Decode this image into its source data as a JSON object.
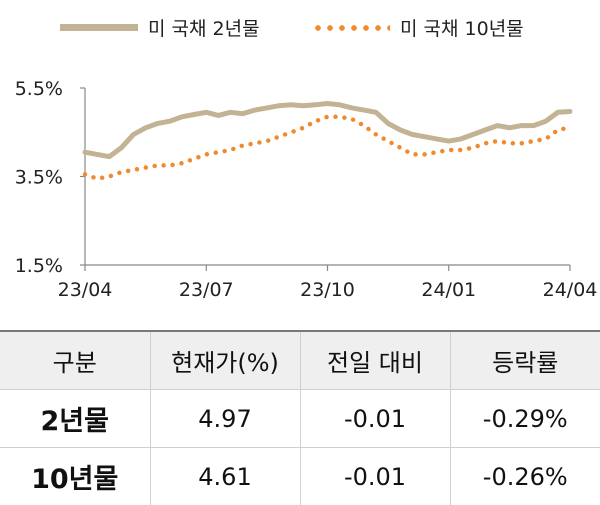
{
  "chart_data": {
    "type": "line",
    "series": [
      {
        "name": "미 국채 2년물",
        "color": "#c2b394",
        "style": "solid",
        "values": [
          4.05,
          4.0,
          3.95,
          4.15,
          4.45,
          4.6,
          4.7,
          4.75,
          4.85,
          4.9,
          4.95,
          4.88,
          4.95,
          4.92,
          5.0,
          5.05,
          5.1,
          5.12,
          5.1,
          5.12,
          5.15,
          5.12,
          5.05,
          5.0,
          4.95,
          4.7,
          4.55,
          4.45,
          4.4,
          4.35,
          4.3,
          4.35,
          4.45,
          4.55,
          4.65,
          4.6,
          4.65,
          4.65,
          4.75,
          4.95,
          4.97
        ]
      },
      {
        "name": "미 국채 10년물",
        "color": "#f08a2c",
        "style": "dotted",
        "values": [
          3.55,
          3.45,
          3.5,
          3.6,
          3.65,
          3.7,
          3.75,
          3.75,
          3.8,
          3.9,
          4.0,
          4.05,
          4.1,
          4.2,
          4.25,
          4.3,
          4.4,
          4.5,
          4.6,
          4.75,
          4.85,
          4.85,
          4.8,
          4.65,
          4.45,
          4.3,
          4.15,
          4.0,
          4.0,
          4.05,
          4.1,
          4.1,
          4.15,
          4.25,
          4.3,
          4.25,
          4.25,
          4.3,
          4.35,
          4.55,
          4.61
        ]
      }
    ],
    "x_ticks": [
      "23/04",
      "23/07",
      "23/10",
      "24/01",
      "24/04"
    ],
    "y_ticks": [
      "5.5%",
      "3.5%",
      "1.5%"
    ],
    "ylim": [
      1.5,
      5.5
    ],
    "legend_position": "top"
  },
  "table": {
    "headers": [
      "구분",
      "현재가(%)",
      "전일 대비",
      "등락률"
    ],
    "rows": [
      [
        "2년물",
        "4.97",
        "-0.01",
        "-0.29%"
      ],
      [
        "10년물",
        "4.61",
        "-0.01",
        "-0.26%"
      ]
    ]
  }
}
